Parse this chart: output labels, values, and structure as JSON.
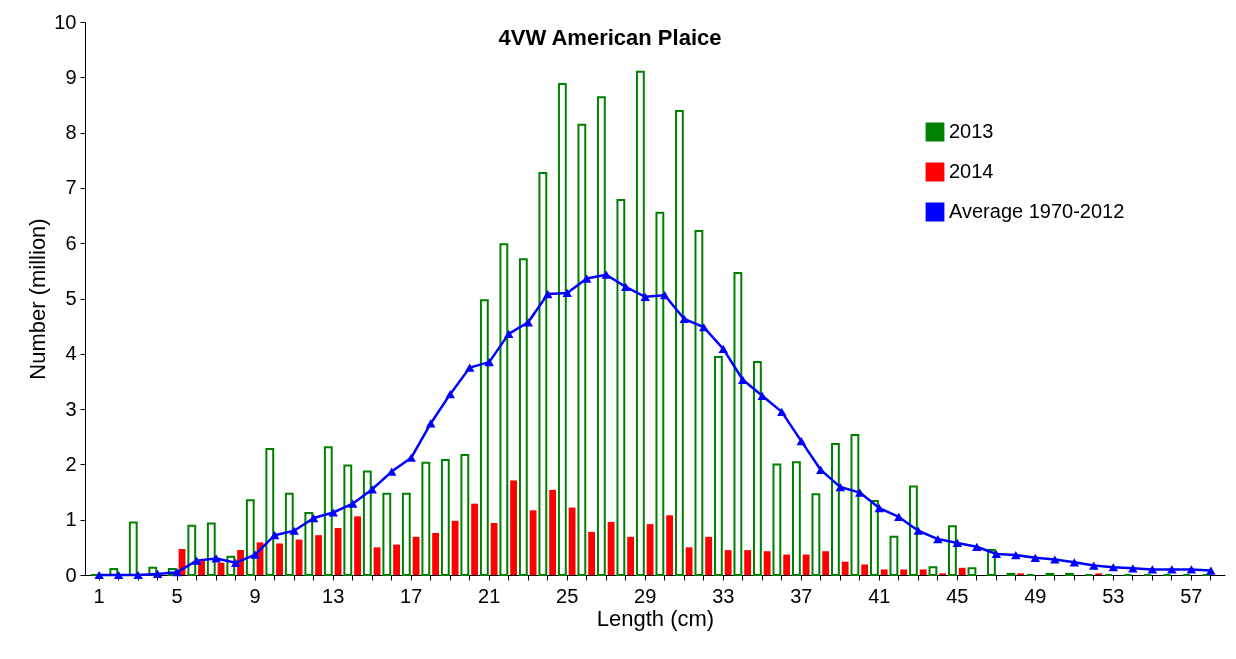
{
  "chart_data": {
    "type": "bar",
    "title": "4VW American Plaice",
    "xlabel": "Length (cm)",
    "ylabel": "Number (million)",
    "categories": [
      "1",
      null,
      null,
      null,
      "5",
      null,
      null,
      null,
      "9",
      null,
      null,
      null,
      "13",
      null,
      null,
      null,
      "17",
      null,
      null,
      null,
      "21",
      null,
      null,
      null,
      "25",
      null,
      null,
      null,
      "29",
      null,
      null,
      null,
      "33",
      null,
      null,
      null,
      "37",
      null,
      null,
      null,
      "41",
      null,
      null,
      null,
      "45",
      null,
      null,
      null,
      "49",
      null,
      null,
      null,
      "53",
      null,
      null,
      null,
      "57",
      null
    ],
    "series": [
      {
        "name": "2013",
        "color": "#008000",
        "values": [
          0,
          0.11,
          0.95,
          0.13,
          0.11,
          0.89,
          0.93,
          0.33,
          1.35,
          2.28,
          1.47,
          1.12,
          2.31,
          1.98,
          1.87,
          1.47,
          1.47,
          2.03,
          2.08,
          2.17,
          4.97,
          5.98,
          5.71,
          7.27,
          8.88,
          8.14,
          8.64,
          6.78,
          9.1,
          6.55,
          8.39,
          6.22,
          3.94,
          5.46,
          3.85,
          2.0,
          2.04,
          1.46,
          2.37,
          2.53,
          1.34,
          0.69,
          1.6,
          0.14,
          0.88,
          0.12,
          0.45,
          0.02,
          0,
          0.02,
          0.02,
          0,
          0,
          0,
          0,
          0,
          0,
          0
        ]
      },
      {
        "name": "2014",
        "color": "#ff0000",
        "values": [
          0,
          0,
          0,
          0,
          0.47,
          0.27,
          0.22,
          0.45,
          0.59,
          0.57,
          0.64,
          0.72,
          0.85,
          1.06,
          0.5,
          0.55,
          0.69,
          0.76,
          0.98,
          1.29,
          0.94,
          1.71,
          1.17,
          1.54,
          1.22,
          0.78,
          0.96,
          0.69,
          0.92,
          1.08,
          0.5,
          0.69,
          0.45,
          0.45,
          0.43,
          0.37,
          0.37,
          0.43,
          0.24,
          0.19,
          0.1,
          0.1,
          0.1,
          0.03,
          0.13,
          0,
          0,
          0.03,
          0,
          0,
          0,
          0.03,
          0,
          0,
          0,
          0,
          0,
          0
        ]
      },
      {
        "name": "Average 1970-2012",
        "type": "line",
        "color": "#0000ff",
        "marker": "triangle",
        "values": [
          0,
          0,
          0,
          0.02,
          0.05,
          0.26,
          0.3,
          0.22,
          0.37,
          0.72,
          0.8,
          1.03,
          1.13,
          1.29,
          1.55,
          1.87,
          2.12,
          2.74,
          3.27,
          3.75,
          3.85,
          4.36,
          4.57,
          5.08,
          5.1,
          5.36,
          5.43,
          5.21,
          5.03,
          5.06,
          4.63,
          4.48,
          4.09,
          3.53,
          3.24,
          2.95,
          2.42,
          1.9,
          1.59,
          1.49,
          1.21,
          1.05,
          0.8,
          0.65,
          0.58,
          0.51,
          0.38,
          0.36,
          0.31,
          0.28,
          0.23,
          0.17,
          0.14,
          0.12,
          0.1,
          0.1,
          0.1,
          0.08
        ]
      }
    ],
    "ylim": [
      0,
      10
    ],
    "yticks": [
      0,
      1,
      2,
      3,
      4,
      5,
      6,
      7,
      8,
      9,
      10
    ],
    "grid": false,
    "legend": "top right"
  }
}
